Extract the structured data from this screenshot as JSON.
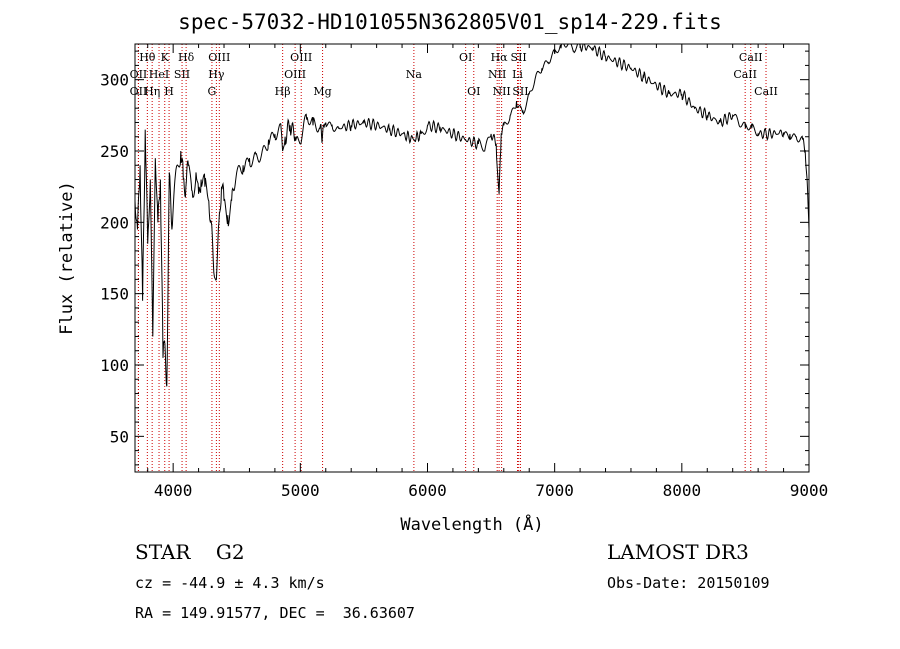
{
  "chart_data": {
    "type": "line",
    "title": "spec-57032-HD101055N362805V01_sp14-229.fits",
    "xlabel": "Wavelength (Å)",
    "ylabel": "Flux (relative)",
    "xlim": [
      3700,
      9000
    ],
    "ylim": [
      25,
      325
    ],
    "xticks": [
      4000,
      5000,
      6000,
      7000,
      8000,
      9000
    ],
    "yticks": [
      50,
      100,
      150,
      200,
      250,
      300
    ],
    "series": [
      {
        "name": "flux",
        "x": [
          3700,
          3720,
          3740,
          3760,
          3780,
          3800,
          3820,
          3840,
          3860,
          3880,
          3900,
          3920,
          3935,
          3950,
          3970,
          3990,
          4010,
          4030,
          4060,
          4080,
          4100,
          4120,
          4150,
          4180,
          4200,
          4220,
          4250,
          4280,
          4300,
          4320,
          4340,
          4360,
          4380,
          4400,
          4430,
          4460,
          4500,
          4550,
          4600,
          4650,
          4700,
          4750,
          4800,
          4850,
          4861,
          4880,
          4920,
          4960,
          5000,
          5050,
          5100,
          5150,
          5175,
          5200,
          5250,
          5300,
          5400,
          5500,
          5600,
          5700,
          5800,
          5893,
          5950,
          6000,
          6100,
          6200,
          6300,
          6400,
          6450,
          6500,
          6540,
          6563,
          6580,
          6600,
          6650,
          6700,
          6750,
          6800,
          6850,
          6900,
          6950,
          7000,
          7050,
          7100,
          7150,
          7200,
          7300,
          7400,
          7500,
          7600,
          7700,
          7800,
          7900,
          8000,
          8100,
          8200,
          8300,
          8400,
          8450,
          8500,
          8550,
          8600,
          8700,
          8800,
          8850,
          8900,
          8950,
          8970,
          8985,
          9000
        ],
        "values": [
          215,
          195,
          240,
          145,
          265,
          185,
          230,
          120,
          245,
          200,
          230,
          105,
          115,
          85,
          235,
          195,
          225,
          240,
          250,
          230,
          225,
          240,
          222,
          235,
          220,
          230,
          225,
          215,
          200,
          165,
          160,
          200,
          225,
          215,
          205,
          215,
          235,
          240,
          245,
          248,
          250,
          258,
          262,
          265,
          250,
          260,
          268,
          260,
          255,
          272,
          268,
          266,
          262,
          270,
          268,
          266,
          268,
          270,
          268,
          265,
          262,
          258,
          262,
          268,
          266,
          262,
          258,
          255,
          250,
          262,
          255,
          220,
          262,
          268,
          275,
          285,
          278,
          290,
          302,
          308,
          312,
          318,
          322,
          324,
          320,
          324,
          322,
          316,
          312,
          308,
          302,
          296,
          290,
          290,
          280,
          275,
          270,
          275,
          268,
          266,
          266,
          262,
          262,
          263,
          262,
          260,
          258,
          250,
          230,
          195
        ]
      }
    ],
    "line_ids": [
      {
        "label": "Hθ",
        "x": 3797,
        "row": 1
      },
      {
        "label": "K",
        "x": 3934,
        "row": 1
      },
      {
        "label": "Hδ",
        "x": 4102,
        "row": 1
      },
      {
        "label": "OIII",
        "x": 4363,
        "row": 1
      },
      {
        "label": "OIII",
        "x": 5007,
        "row": 1
      },
      {
        "label": "OI",
        "x": 6300,
        "row": 1
      },
      {
        "label": "Hα",
        "x": 6563,
        "row": 1
      },
      {
        "label": "SII",
        "x": 6717,
        "row": 1
      },
      {
        "label": "CaII",
        "x": 8542,
        "row": 1
      },
      {
        "label": "OII",
        "x": 3727,
        "row": 2
      },
      {
        "label": "HeI",
        "x": 3889,
        "row": 2
      },
      {
        "label": "SII",
        "x": 4070,
        "row": 2
      },
      {
        "label": "Hγ",
        "x": 4340,
        "row": 2
      },
      {
        "label": "OIII",
        "x": 4959,
        "row": 2
      },
      {
        "label": "NII",
        "x": 6548,
        "row": 2
      },
      {
        "label": "Li",
        "x": 6708,
        "row": 2
      },
      {
        "label": "CaII",
        "x": 8498,
        "row": 2
      },
      {
        "label": "OII",
        "x": 3727,
        "row": 3
      },
      {
        "label": "Hη",
        "x": 3835,
        "row": 3
      },
      {
        "label": "H",
        "x": 3968,
        "row": 3
      },
      {
        "label": "G",
        "x": 4305,
        "row": 3
      },
      {
        "label": "Hβ",
        "x": 4861,
        "row": 3
      },
      {
        "label": "Mg",
        "x": 5175,
        "row": 3
      },
      {
        "label": "Na",
        "x": 5893,
        "row": 2
      },
      {
        "label": "OI",
        "x": 6364,
        "row": 3
      },
      {
        "label": "NII",
        "x": 6583,
        "row": 3
      },
      {
        "label": "SII",
        "x": 6731,
        "row": 3
      },
      {
        "label": "CaII",
        "x": 8662,
        "row": 3
      }
    ],
    "line_color": "#000000",
    "marker_color": "#cc0000"
  },
  "footer": {
    "left_class": "STAR    G2",
    "redshift": "cz = -44.9 ± 4.3 km/s",
    "coords": "RA = 149.91577, DEC =  36.63607",
    "survey": "LAMOST DR3",
    "obs_date": "Obs-Date: 20150109"
  }
}
